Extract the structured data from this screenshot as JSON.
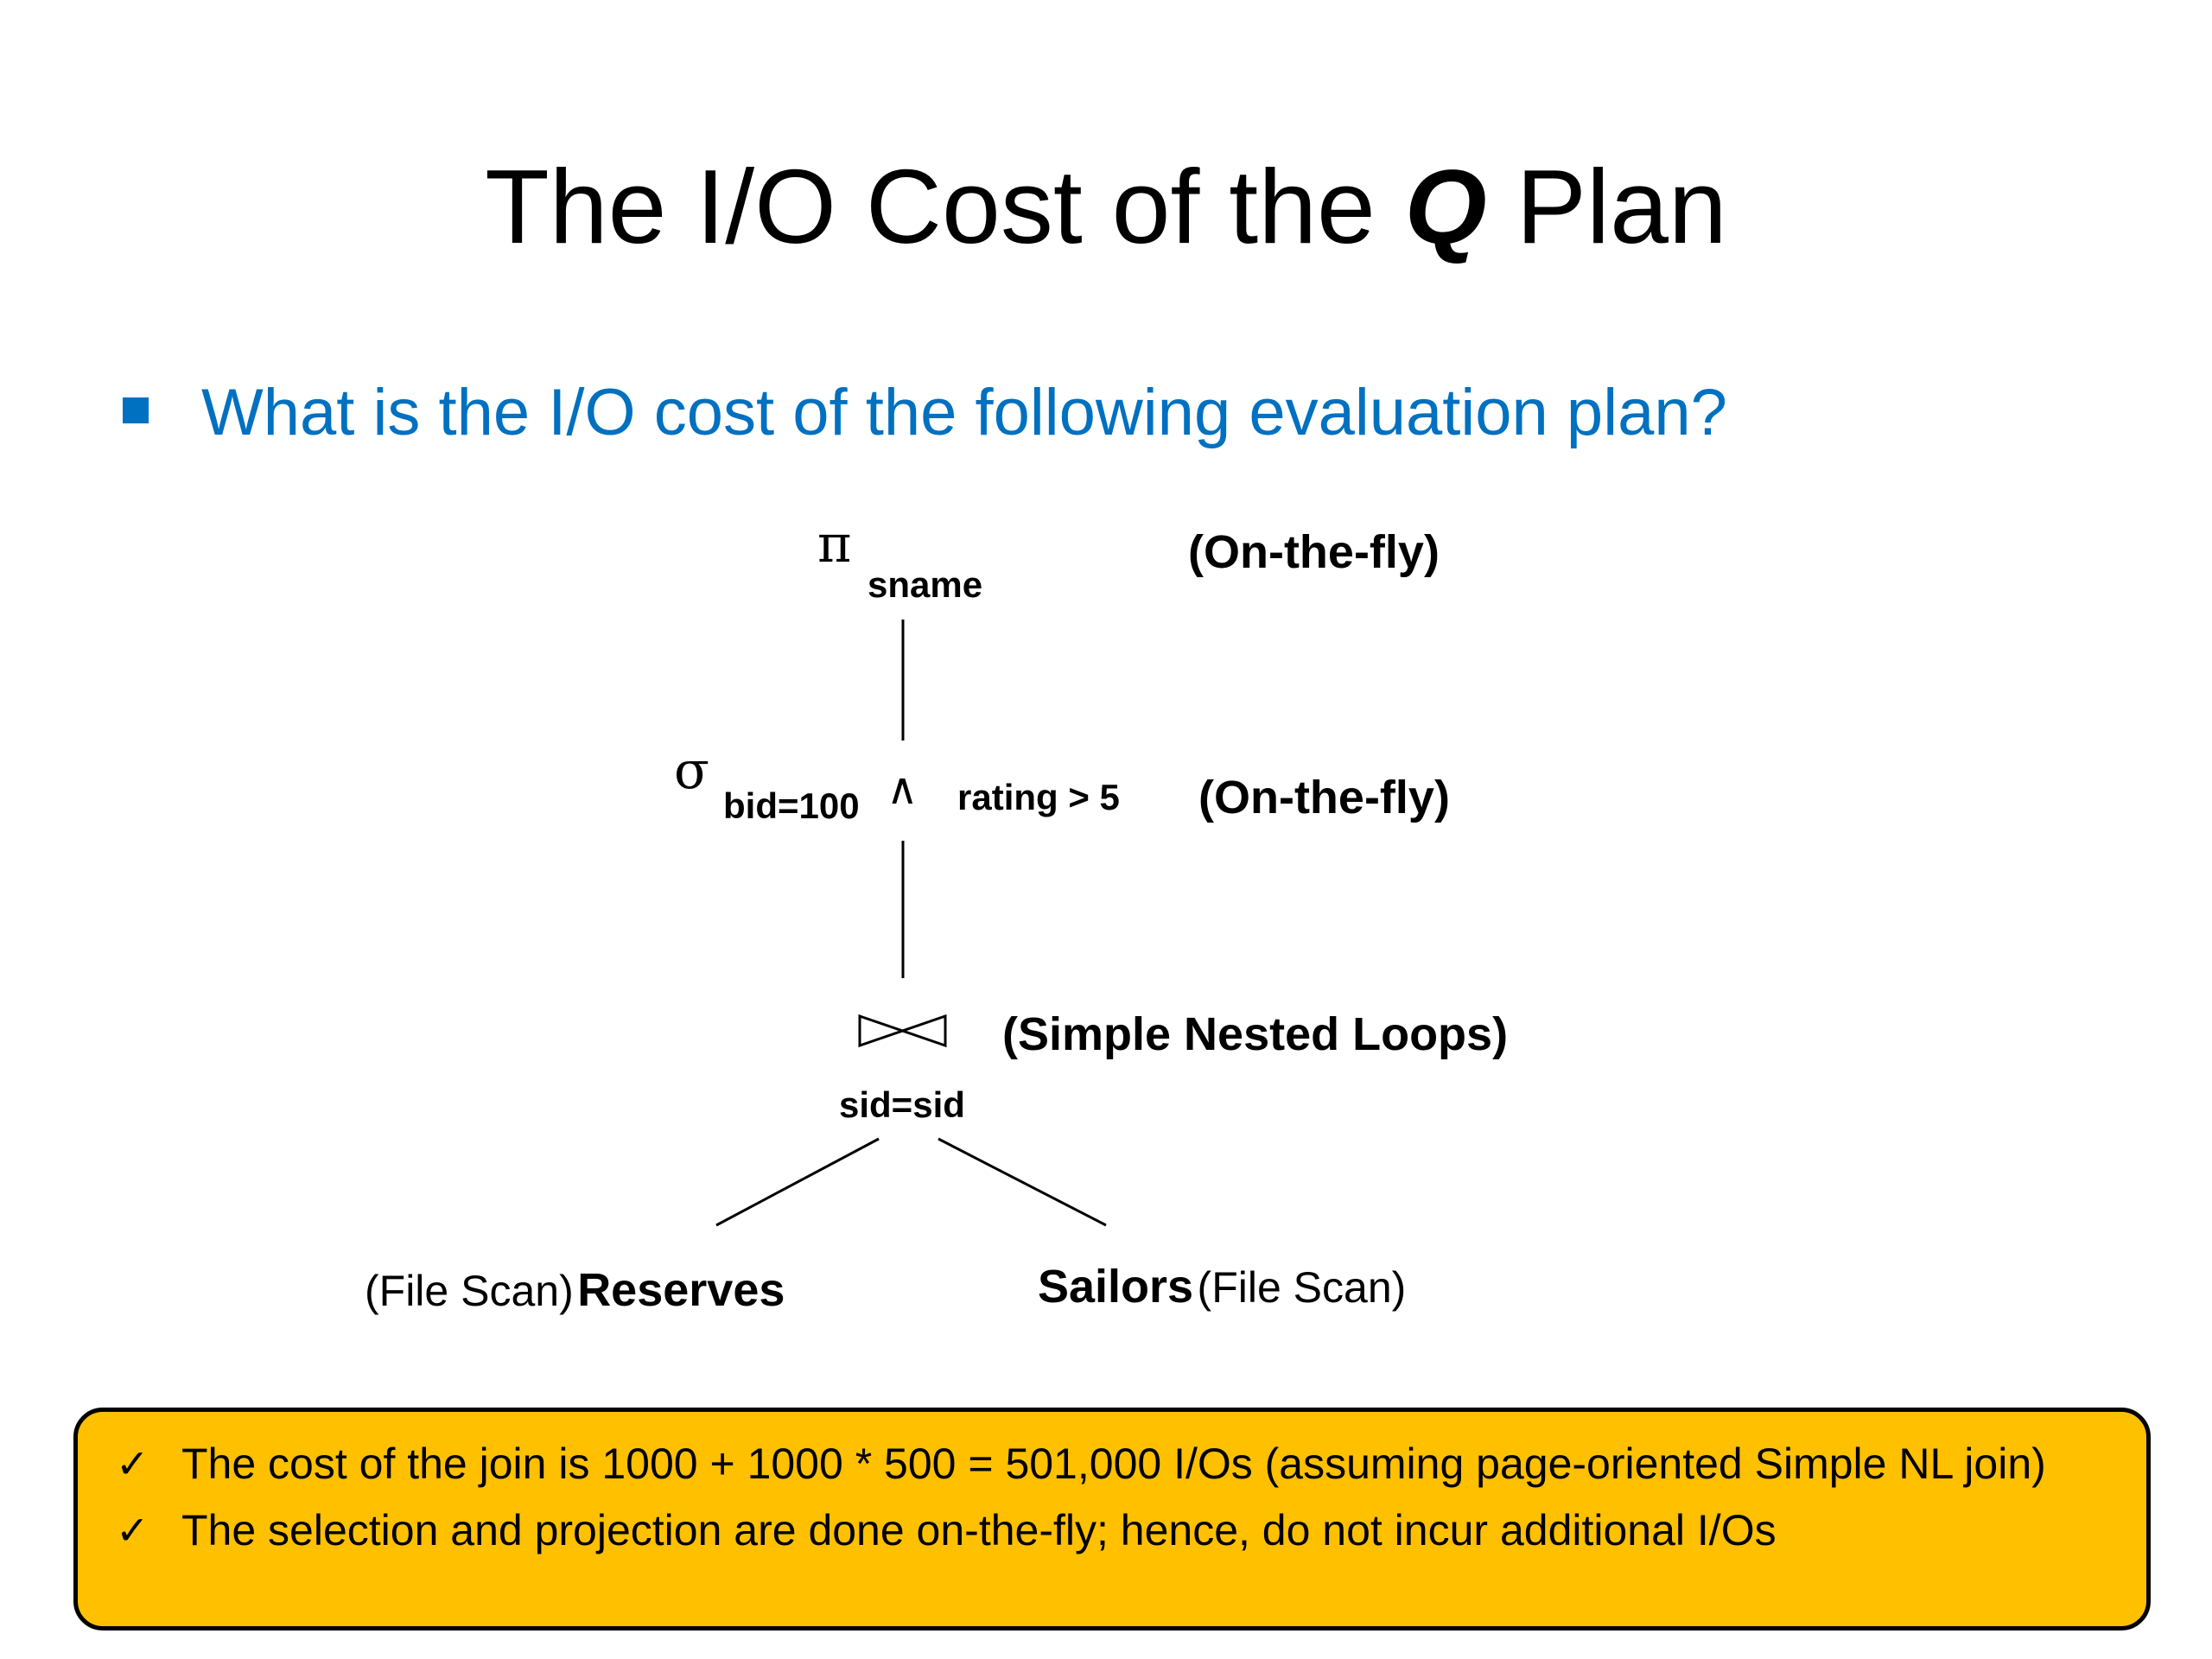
{
  "title": {
    "before": "The I/O Cost of the ",
    "emphasis": "Q",
    "after": " Plan"
  },
  "bullet": "What is the I/O cost of the following evaluation plan?",
  "plan": {
    "projection": {
      "symbol": "π",
      "subscript": "sname",
      "note": "(On-the-fly)"
    },
    "selection": {
      "symbol": "σ",
      "condition_left": "bid=100",
      "and": "∧",
      "condition_right": "rating > 5",
      "note": "(On-the-fly)"
    },
    "join": {
      "condition": "sid=sid",
      "note": "(Simple Nested Loops)"
    },
    "left": {
      "access": "(File Scan)",
      "relation": "Reserves"
    },
    "right": {
      "relation": "Sailors",
      "access": "(File Scan)"
    }
  },
  "callout": {
    "items": [
      "The cost of the join is 1000 + 1000 * 500 = 501,000 I/Os (assuming page-oriented Simple NL join)",
      "The selection and projection are done on-the-fly; hence, do not incur additional I/Os"
    ]
  }
}
